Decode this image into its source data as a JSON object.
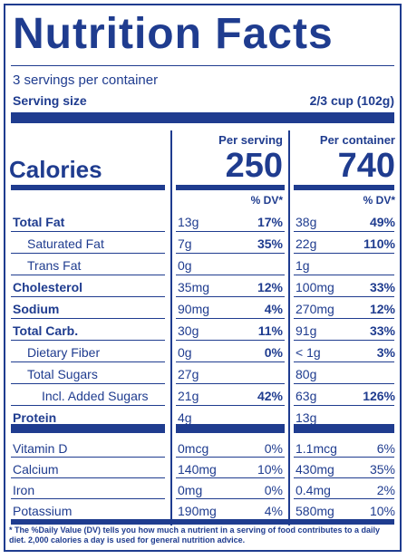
{
  "title": "Nutrition Facts",
  "servings_per_container": "3 servings per container",
  "serving_size_label": "Serving size",
  "serving_size_value": "2/3 cup (102g)",
  "calories_label": "Calories",
  "per_serving_label": "Per serving",
  "per_container_label": "Per container",
  "calories_per_serving": "250",
  "calories_per_container": "740",
  "dv_header": "% DV*",
  "nutrients": [
    {
      "name": "Total Fat",
      "bold": true,
      "indent": 0,
      "ps_amt": "13g",
      "ps_dv": "17%",
      "pc_amt": "38g",
      "pc_dv": "49%"
    },
    {
      "name": "Saturated Fat",
      "bold": false,
      "indent": 1,
      "ps_amt": "7g",
      "ps_dv": "35%",
      "pc_amt": "22g",
      "pc_dv": "110%"
    },
    {
      "name": "Trans Fat",
      "bold": false,
      "indent": 1,
      "ps_amt": "0g",
      "ps_dv": "",
      "pc_amt": "1g",
      "pc_dv": ""
    },
    {
      "name": "Cholesterol",
      "bold": true,
      "indent": 0,
      "ps_amt": "35mg",
      "ps_dv": "12%",
      "pc_amt": "100mg",
      "pc_dv": "33%"
    },
    {
      "name": "Sodium",
      "bold": true,
      "indent": 0,
      "ps_amt": "90mg",
      "ps_dv": "4%",
      "pc_amt": "270mg",
      "pc_dv": "12%"
    },
    {
      "name": "Total Carb.",
      "bold": true,
      "indent": 0,
      "ps_amt": "30g",
      "ps_dv": "11%",
      "pc_amt": "91g",
      "pc_dv": "33%"
    },
    {
      "name": "Dietary Fiber",
      "bold": false,
      "indent": 1,
      "ps_amt": "0g",
      "ps_dv": "0%",
      "pc_amt": "< 1g",
      "pc_dv": "3%"
    },
    {
      "name": "Total Sugars",
      "bold": false,
      "indent": 1,
      "ps_amt": "27g",
      "ps_dv": "",
      "pc_amt": "80g",
      "pc_dv": ""
    },
    {
      "name": "Incl. Added Sugars",
      "bold": false,
      "indent": 2,
      "ps_amt": "21g",
      "ps_dv": "42%",
      "pc_amt": "63g",
      "pc_dv": "126%"
    },
    {
      "name": "Protein",
      "bold": true,
      "indent": 0,
      "ps_amt": "4g",
      "ps_dv": "",
      "pc_amt": "13g",
      "pc_dv": ""
    }
  ],
  "vitamins": [
    {
      "name": "Vitamin D",
      "ps_amt": "0mcg",
      "ps_dv": "0%",
      "pc_amt": "1.1mcg",
      "pc_dv": "6%"
    },
    {
      "name": "Calcium",
      "ps_amt": "140mg",
      "ps_dv": "10%",
      "pc_amt": "430mg",
      "pc_dv": "35%"
    },
    {
      "name": "Iron",
      "ps_amt": "0mg",
      "ps_dv": "0%",
      "pc_amt": "0.4mg",
      "pc_dv": "2%"
    },
    {
      "name": "Potassium",
      "ps_amt": "190mg",
      "ps_dv": "4%",
      "pc_amt": "580mg",
      "pc_dv": "10%"
    }
  ],
  "footnote": "* The %Daily Value (DV) tells you how much a nutrient in a serving of food contributes to a daily diet. 2,000 calories a day is used for general nutrition advice."
}
